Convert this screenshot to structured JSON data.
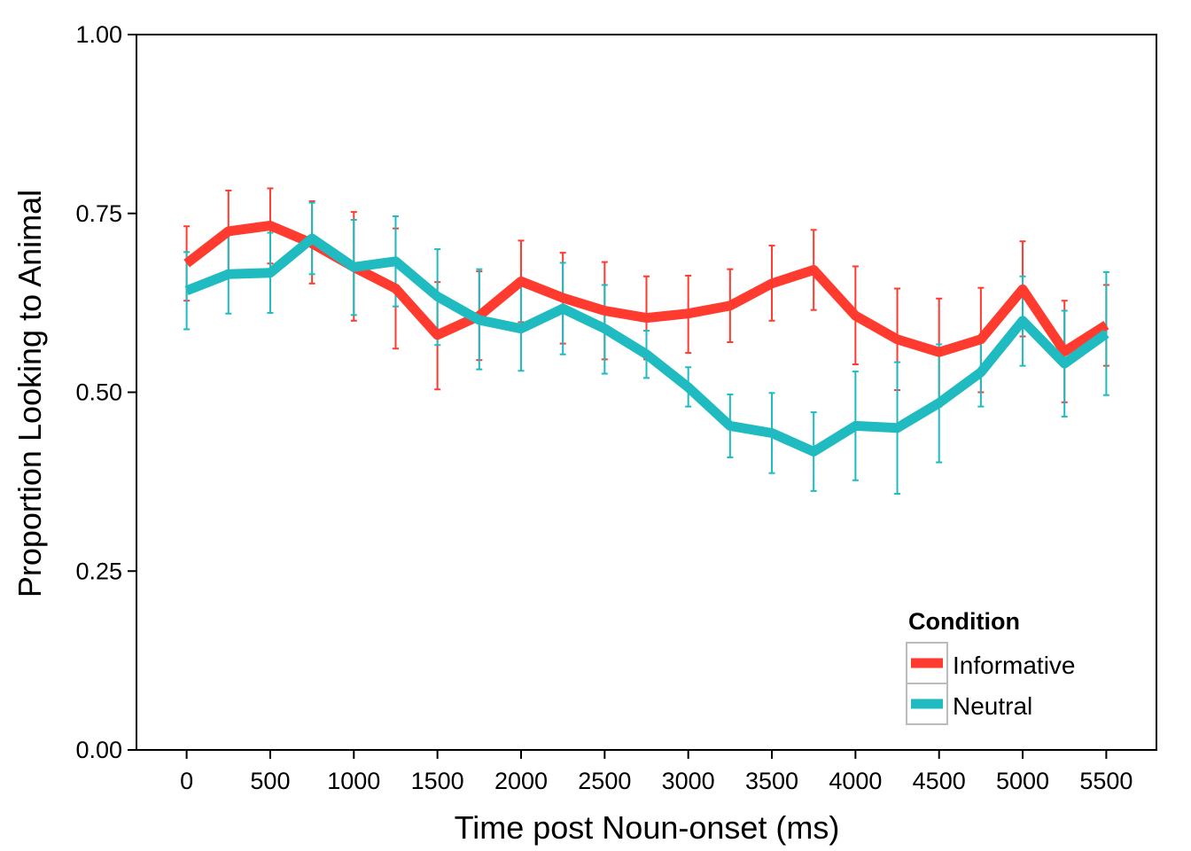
{
  "chart_data": {
    "type": "line",
    "title": "",
    "xlabel": "Time post Noun-onset (ms)",
    "ylabel": "Proportion Looking to Animal",
    "xlim": [
      -300,
      5800
    ],
    "ylim": [
      0,
      1
    ],
    "x_ticks": [
      0,
      500,
      1000,
      1500,
      2000,
      2500,
      3000,
      3500,
      4000,
      4500,
      5000,
      5500
    ],
    "y_ticks": [
      0,
      0.25,
      0.5,
      0.75,
      1
    ],
    "y_tick_labels": [
      "0.00",
      "0.25",
      "0.50",
      "0.75",
      "1.00"
    ],
    "x": [
      0,
      250,
      500,
      750,
      1000,
      1250,
      1500,
      1750,
      2000,
      2250,
      2500,
      2750,
      3000,
      3250,
      3500,
      3750,
      4000,
      4250,
      4500,
      4750,
      5000,
      5250,
      5500
    ],
    "legend": {
      "title": "Condition",
      "position": "bottom-right"
    },
    "series": [
      {
        "name": "Informative",
        "color": "#ff3a2f",
        "values": [
          0.68,
          0.725,
          0.733,
          0.708,
          0.675,
          0.645,
          0.58,
          0.607,
          0.655,
          0.632,
          0.614,
          0.604,
          0.61,
          0.621,
          0.652,
          0.671,
          0.607,
          0.574,
          0.556,
          0.574,
          0.644,
          0.557,
          0.594
        ],
        "lower": [
          0.628,
          0.67,
          0.68,
          0.652,
          0.6,
          0.561,
          0.504,
          0.545,
          0.598,
          0.568,
          0.546,
          0.546,
          0.555,
          0.57,
          0.6,
          0.615,
          0.539,
          0.503,
          0.48,
          0.5,
          0.578,
          0.486,
          0.537
        ],
        "upper": [
          0.732,
          0.782,
          0.785,
          0.767,
          0.752,
          0.729,
          0.654,
          0.669,
          0.712,
          0.695,
          0.682,
          0.662,
          0.663,
          0.672,
          0.705,
          0.727,
          0.676,
          0.645,
          0.631,
          0.646,
          0.711,
          0.628,
          0.65
        ]
      },
      {
        "name": "Neutral",
        "color": "#1fbbc1",
        "values": [
          0.642,
          0.665,
          0.667,
          0.715,
          0.675,
          0.683,
          0.634,
          0.601,
          0.589,
          0.617,
          0.589,
          0.553,
          0.507,
          0.453,
          0.443,
          0.417,
          0.453,
          0.45,
          0.485,
          0.528,
          0.6,
          0.54,
          0.582
        ],
        "lower": [
          0.588,
          0.61,
          0.611,
          0.665,
          0.608,
          0.62,
          0.566,
          0.532,
          0.53,
          0.553,
          0.526,
          0.52,
          0.48,
          0.409,
          0.387,
          0.362,
          0.377,
          0.358,
          0.402,
          0.48,
          0.537,
          0.466,
          0.496
        ],
        "upper": [
          0.696,
          0.72,
          0.723,
          0.765,
          0.741,
          0.746,
          0.7,
          0.672,
          0.648,
          0.681,
          0.65,
          0.586,
          0.535,
          0.497,
          0.499,
          0.472,
          0.529,
          0.542,
          0.567,
          0.576,
          0.662,
          0.614,
          0.668
        ]
      }
    ]
  }
}
